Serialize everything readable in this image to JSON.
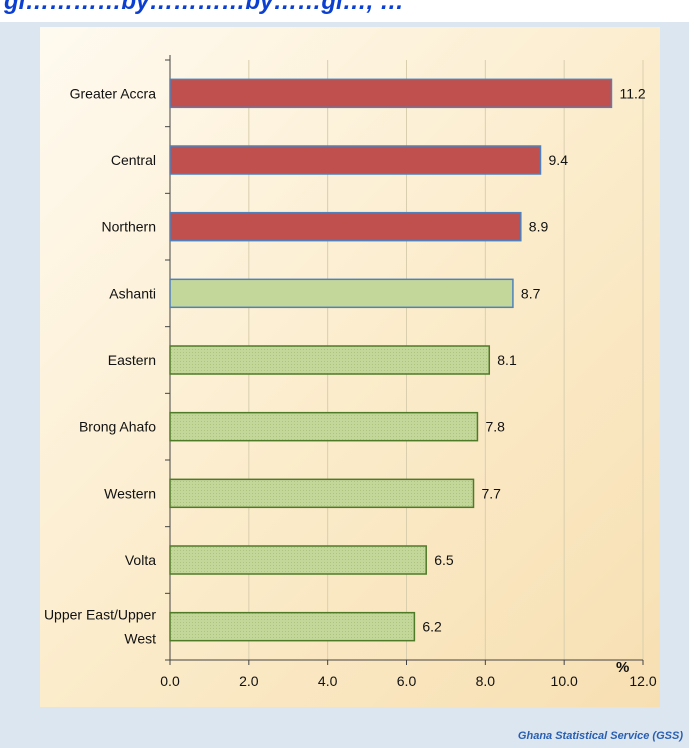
{
  "header": {
    "title_fragment": "gi…………by…………by……gi…, …"
  },
  "source_note": "Ghana Statistical Service (GSS)",
  "colors": {
    "top_bar": "#c0504d",
    "other_bar": "#c4d79b",
    "top_border": "#4f81bd",
    "other_border": "#4f7a28"
  },
  "chart_data": {
    "type": "bar",
    "orientation": "horizontal",
    "unit_label": "%",
    "categories": [
      "Greater Accra",
      "Central",
      "Northern",
      "Ashanti",
      "Eastern",
      "Brong Ahafo",
      "Western",
      "Volta",
      "Upper East/Upper West"
    ],
    "values": [
      11.2,
      9.4,
      8.9,
      8.7,
      8.1,
      7.8,
      7.7,
      6.5,
      6.2
    ],
    "value_labels": [
      "11.2",
      "9.4",
      "8.9",
      "8.7",
      "8.1",
      "7.8",
      "7.7",
      "6.5",
      "6.2"
    ],
    "highlighted": [
      true,
      true,
      true,
      false,
      false,
      false,
      false,
      false,
      false
    ],
    "xlim": [
      0,
      12
    ],
    "xticks": [
      "0.0",
      "2.0",
      "4.0",
      "6.0",
      "8.0",
      "10.0",
      "12.0"
    ],
    "grid": true
  }
}
